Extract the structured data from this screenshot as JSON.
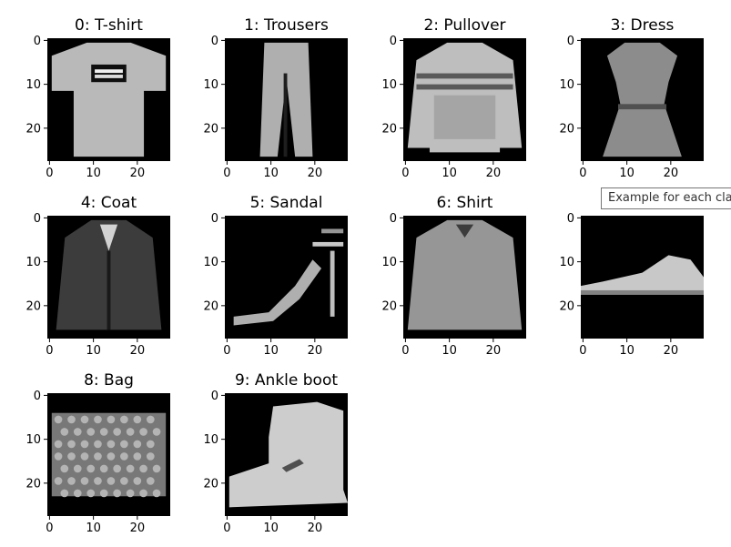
{
  "chart_data": {
    "type": "image-grid",
    "layout": {
      "rows": 3,
      "cols": 4
    },
    "axis_range": {
      "x": [
        -0.5,
        27.5
      ],
      "y": [
        27.5,
        -0.5
      ]
    },
    "x_ticks": [
      "0",
      "10",
      "20"
    ],
    "y_ticks": [
      "0",
      "10",
      "20"
    ],
    "colormap": "gray",
    "panels": [
      {
        "class_index": 0,
        "title": "0: T-shirt",
        "item": "tshirt"
      },
      {
        "class_index": 1,
        "title": "1: Trousers",
        "item": "trousers"
      },
      {
        "class_index": 2,
        "title": "2: Pullover",
        "item": "pullover"
      },
      {
        "class_index": 3,
        "title": "3: Dress",
        "item": "dress"
      },
      {
        "class_index": 4,
        "title": "4: Coat",
        "item": "coat"
      },
      {
        "class_index": 5,
        "title": "5: Sandal",
        "item": "sandal"
      },
      {
        "class_index": 6,
        "title": "6: Shirt",
        "item": "shirt"
      },
      {
        "class_index": 7,
        "title": "",
        "item": "sneaker"
      },
      {
        "class_index": 8,
        "title": "8: Bag",
        "item": "bag"
      },
      {
        "class_index": 9,
        "title": "9: Ankle boot",
        "item": "boot"
      }
    ]
  },
  "tooltip": {
    "text": "Example for each class"
  }
}
